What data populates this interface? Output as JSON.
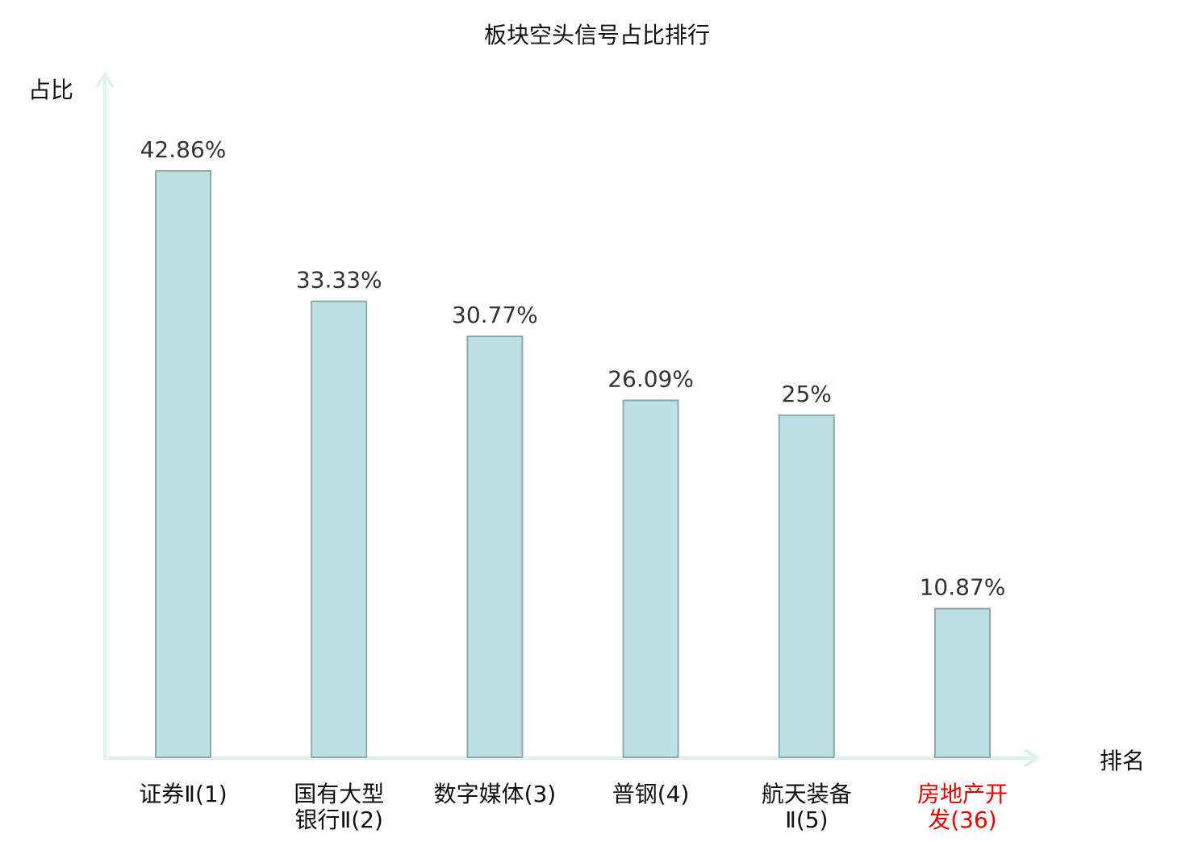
{
  "chart_data": {
    "type": "bar",
    "title": "板块空头信号占比排行",
    "ylabel": "占比",
    "xlabel": "排名",
    "ylim": [
      0,
      44
    ],
    "grid": false,
    "categories": [
      {
        "lines": [
          "证券Ⅱ(1)"
        ],
        "highlight": false
      },
      {
        "lines": [
          "国有大型",
          "银行Ⅱ(2)"
        ],
        "highlight": false
      },
      {
        "lines": [
          "数字媒体(3)"
        ],
        "highlight": false
      },
      {
        "lines": [
          "普钢(4)"
        ],
        "highlight": false
      },
      {
        "lines": [
          "航天装备",
          "Ⅱ(5)"
        ],
        "highlight": false
      },
      {
        "lines": [
          "房地产开",
          "发(36)"
        ],
        "highlight": true
      }
    ],
    "values": [
      42.86,
      33.33,
      30.77,
      26.09,
      25,
      10.87
    ],
    "value_labels": [
      "42.86%",
      "33.33%",
      "30.77%",
      "26.09%",
      "25%",
      "10.87%"
    ],
    "colors": {
      "bar": "#bce0e3",
      "bar_stroke": "#8fa9ab",
      "axis": "#dff2ef",
      "highlight": "#e00000",
      "text": "#333333"
    }
  }
}
